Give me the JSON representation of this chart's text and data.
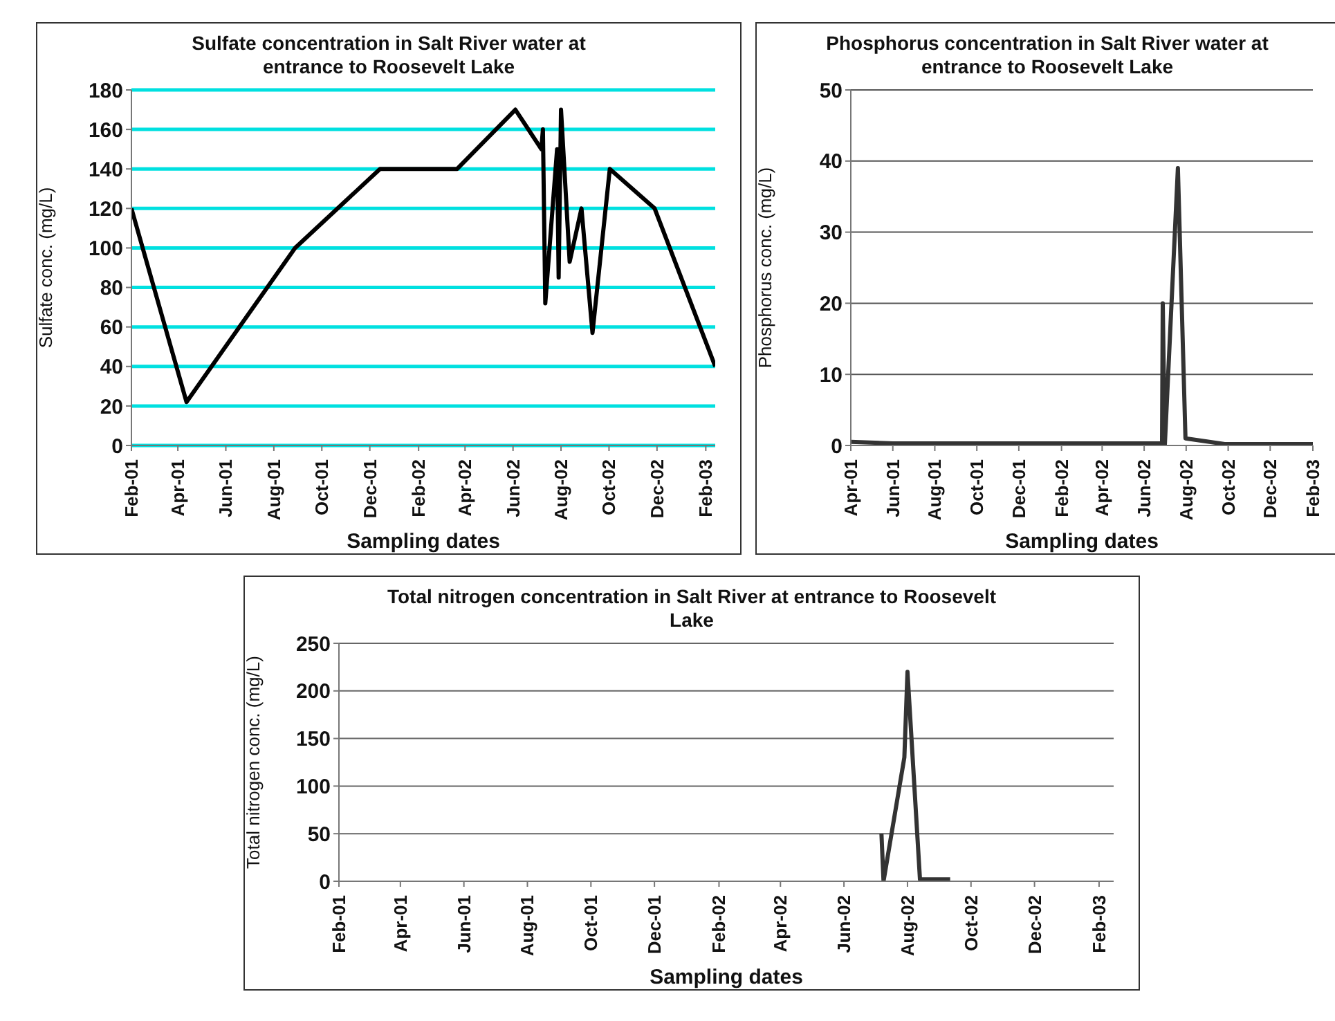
{
  "chart_data": [
    {
      "type": "line",
      "title": "Sulfate concentration in Salt River water at entrance to Roosevelt Lake",
      "xlabel": "Sampling dates",
      "ylabel": "Sulfate conc. (mg/L)",
      "x": [
        "2001-02-01",
        "2001-04-12",
        "2001-08-28",
        "2001-12-14",
        "2002-03-22",
        "2002-06-04",
        "2002-07-07",
        "2002-07-09",
        "2002-07-12",
        "2002-07-27",
        "2002-07-29",
        "2002-08-01",
        "2002-08-12",
        "2002-08-27",
        "2002-09-10",
        "2002-10-02",
        "2002-11-28",
        "2003-02-13"
      ],
      "series": [
        {
          "color": "#000000",
          "values": [
            120,
            22,
            100,
            140,
            140,
            170,
            150,
            160,
            72,
            150,
            85,
            170,
            93,
            120,
            57,
            140,
            120,
            40
          ]
        }
      ],
      "xlim": [
        "2001-02-01",
        "2003-02-13"
      ],
      "xticks": [
        {
          "value": "2001-02-01",
          "label": "Feb-01"
        },
        {
          "value": "2001-04-01",
          "label": "Apr-01"
        },
        {
          "value": "2001-06-01",
          "label": "Jun-01"
        },
        {
          "value": "2001-08-01",
          "label": "Aug-01"
        },
        {
          "value": "2001-10-01",
          "label": "Oct-01"
        },
        {
          "value": "2001-12-01",
          "label": "Dec-01"
        },
        {
          "value": "2002-02-01",
          "label": "Feb-02"
        },
        {
          "value": "2002-04-01",
          "label": "Apr-02"
        },
        {
          "value": "2002-06-01",
          "label": "Jun-02"
        },
        {
          "value": "2002-08-01",
          "label": "Aug-02"
        },
        {
          "value": "2002-10-01",
          "label": "Oct-02"
        },
        {
          "value": "2002-12-01",
          "label": "Dec-02"
        },
        {
          "value": "2003-02-01",
          "label": "Feb-03"
        }
      ],
      "ylim": [
        0,
        180
      ],
      "yticks": [
        0,
        20,
        40,
        60,
        80,
        100,
        120,
        140,
        160,
        180
      ],
      "grid": "y",
      "legend": false,
      "marker": "none",
      "line_style": "solid"
    },
    {
      "type": "line",
      "title": "Phosphorus concentration in Salt River water at entrance to Roosevelt Lake",
      "xlabel": "Sampling dates",
      "ylabel": "Phosphorus conc. (mg/L)",
      "x": [
        "2001-04-01",
        "2001-06-01",
        "2002-06-27",
        "2002-06-28",
        "2002-07-01",
        "2002-07-20",
        "2002-07-31",
        "2002-09-26",
        "2003-02-01"
      ],
      "series": [
        {
          "color": "#333333",
          "values": [
            0.5,
            0.3,
            0.3,
            20,
            0,
            39,
            1,
            0.2,
            0.2
          ]
        }
      ],
      "xlim": [
        "2001-04-01",
        "2003-02-01"
      ],
      "xticks": [
        {
          "value": "2001-04-01",
          "label": "Apr-01"
        },
        {
          "value": "2001-06-01",
          "label": "Jun-01"
        },
        {
          "value": "2001-08-01",
          "label": "Aug-01"
        },
        {
          "value": "2001-10-01",
          "label": "Oct-01"
        },
        {
          "value": "2001-12-01",
          "label": "Dec-01"
        },
        {
          "value": "2002-02-01",
          "label": "Feb-02"
        },
        {
          "value": "2002-04-01",
          "label": "Apr-02"
        },
        {
          "value": "2002-06-01",
          "label": "Jun-02"
        },
        {
          "value": "2002-08-01",
          "label": "Aug-02"
        },
        {
          "value": "2002-10-01",
          "label": "Oct-02"
        },
        {
          "value": "2002-12-01",
          "label": "Dec-02"
        },
        {
          "value": "2003-02-01",
          "label": "Feb-03"
        }
      ],
      "ylim": [
        0,
        50
      ],
      "yticks": [
        0,
        10,
        20,
        30,
        40,
        50
      ],
      "grid": "y",
      "legend": false,
      "marker": "none",
      "line_style": "solid"
    },
    {
      "type": "line",
      "title": "Total nitrogen concentration in Salt River at entrance to Roosevelt Lake",
      "xlabel": "Sampling dates",
      "ylabel": "Total nitrogen conc. (mg/L)",
      "x": [
        "2002-07-07",
        "2002-07-09",
        "2002-07-29",
        "2002-08-01",
        "2002-08-13",
        "2002-09-11"
      ],
      "series": [
        {
          "color": "#333333",
          "values": [
            50,
            0,
            130,
            220,
            2,
            2
          ]
        }
      ],
      "xlim": [
        "2001-02-01",
        "2003-02-15"
      ],
      "xticks": [
        {
          "value": "2001-02-01",
          "label": "Feb-01"
        },
        {
          "value": "2001-04-01",
          "label": "Apr-01"
        },
        {
          "value": "2001-06-01",
          "label": "Jun-01"
        },
        {
          "value": "2001-08-01",
          "label": "Aug-01"
        },
        {
          "value": "2001-10-01",
          "label": "Oct-01"
        },
        {
          "value": "2001-12-01",
          "label": "Dec-01"
        },
        {
          "value": "2002-02-01",
          "label": "Feb-02"
        },
        {
          "value": "2002-04-01",
          "label": "Apr-02"
        },
        {
          "value": "2002-06-01",
          "label": "Jun-02"
        },
        {
          "value": "2002-08-01",
          "label": "Aug-02"
        },
        {
          "value": "2002-10-01",
          "label": "Oct-02"
        },
        {
          "value": "2002-12-01",
          "label": "Dec-02"
        },
        {
          "value": "2003-02-01",
          "label": "Feb-03"
        }
      ],
      "ylim": [
        0,
        250
      ],
      "yticks": [
        0,
        50,
        100,
        150,
        200,
        250
      ],
      "grid": "y",
      "legend": false,
      "marker": "none",
      "line_style": "solid"
    }
  ]
}
